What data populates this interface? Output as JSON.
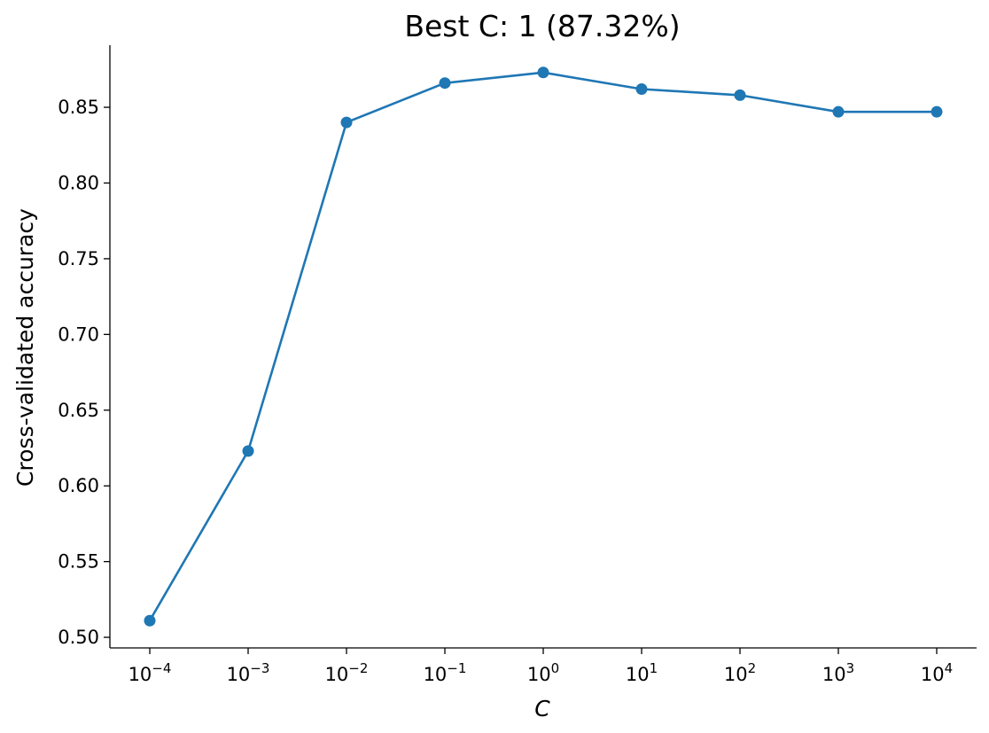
{
  "chart_data": {
    "type": "line",
    "title": "Best C: 1 (87.32%)",
    "xlabel": "C",
    "ylabel": "Cross-validated accuracy",
    "xscale": "log",
    "x_base": "10",
    "x_exponents": [
      "−4",
      "−3",
      "−2",
      "−1",
      "0",
      "1",
      "2",
      "3",
      "4"
    ],
    "x": [
      0.0001,
      0.001,
      0.01,
      0.1,
      1,
      10,
      100,
      1000,
      10000
    ],
    "y": [
      0.511,
      0.623,
      0.84,
      0.866,
      0.873,
      0.862,
      0.858,
      0.847,
      0.847
    ],
    "ylim": [
      0.493,
      0.891
    ],
    "y_ticks": [
      "0.50",
      "0.55",
      "0.60",
      "0.65",
      "0.70",
      "0.75",
      "0.80",
      "0.85"
    ],
    "grid": false,
    "color": "#1f77b4",
    "marker": "circle"
  }
}
